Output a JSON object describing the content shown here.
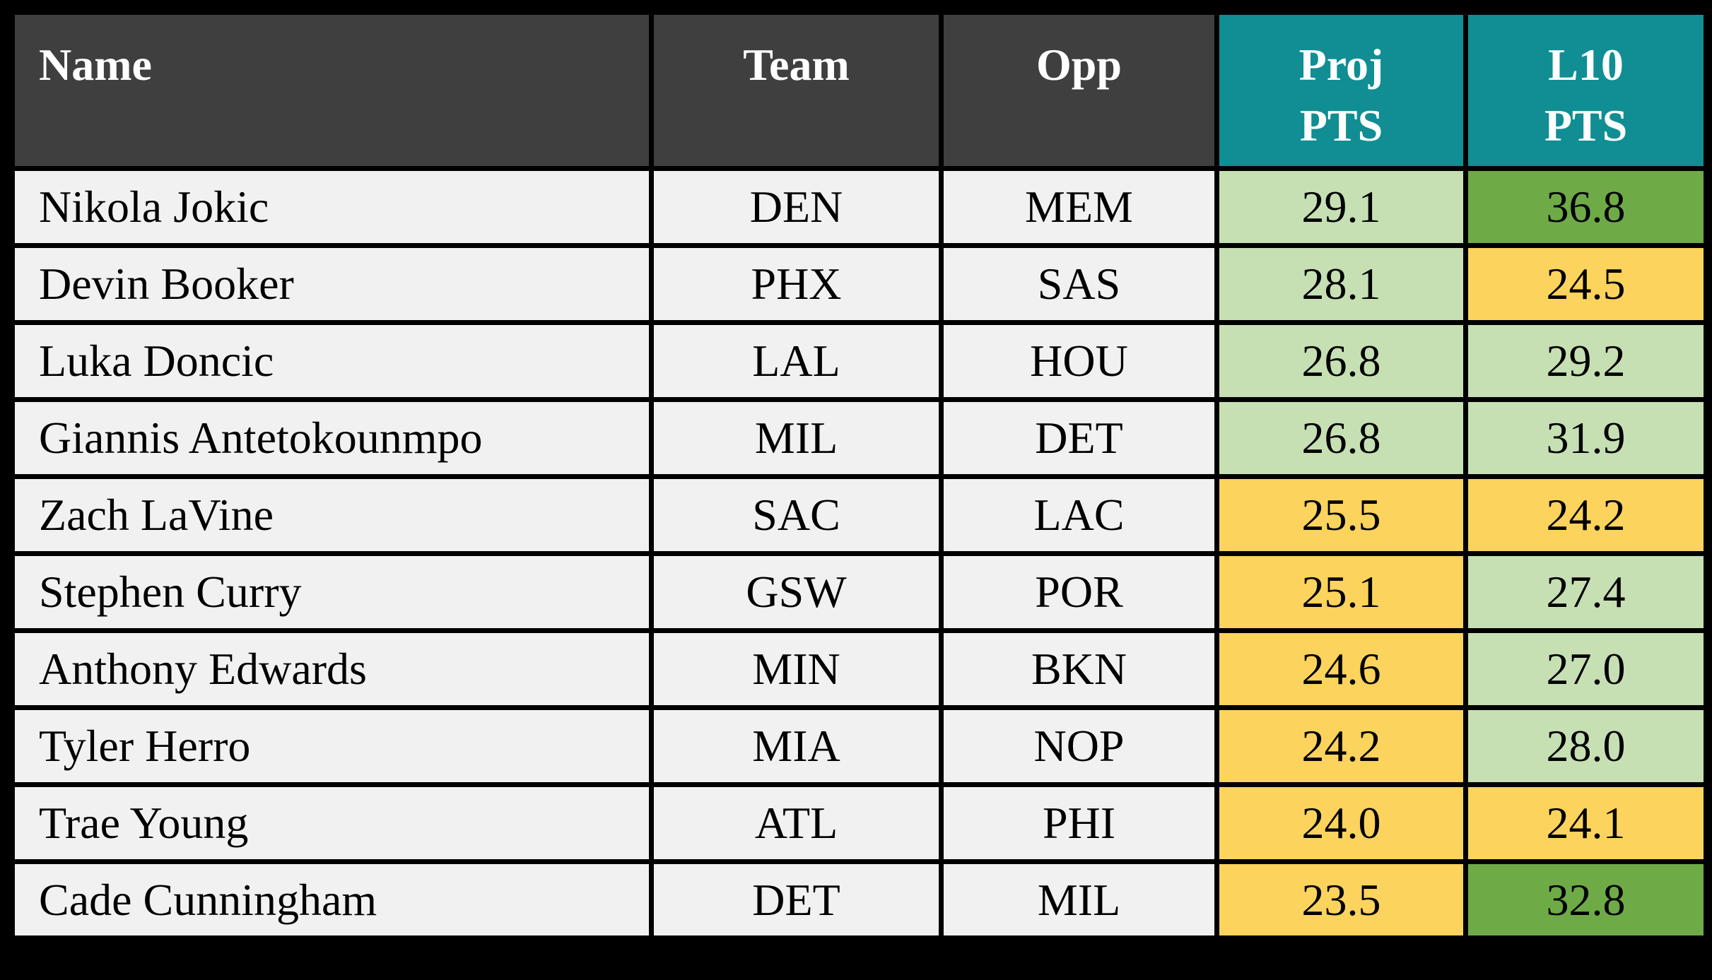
{
  "chart_data": {
    "type": "table",
    "title": "NBA player points projections table",
    "columns": [
      "Name",
      "Team",
      "Opp",
      "Proj PTS",
      "L10 PTS"
    ],
    "rows": [
      {
        "name": "Nikola Jokic",
        "team": "DEN",
        "opp": "MEM",
        "proj_pts": 29.1,
        "l10_pts": 36.8,
        "proj_color": "light_green",
        "l10_color": "dark_green"
      },
      {
        "name": "Devin Booker",
        "team": "PHX",
        "opp": "SAS",
        "proj_pts": 28.1,
        "l10_pts": 24.5,
        "proj_color": "light_green",
        "l10_color": "gold"
      },
      {
        "name": "Luka Doncic",
        "team": "LAL",
        "opp": "HOU",
        "proj_pts": 26.8,
        "l10_pts": 29.2,
        "proj_color": "light_green",
        "l10_color": "light_green"
      },
      {
        "name": "Giannis Antetokounmpo",
        "team": "MIL",
        "opp": "DET",
        "proj_pts": 26.8,
        "l10_pts": 31.9,
        "proj_color": "light_green",
        "l10_color": "light_green"
      },
      {
        "name": "Zach LaVine",
        "team": "SAC",
        "opp": "LAC",
        "proj_pts": 25.5,
        "l10_pts": 24.2,
        "proj_color": "gold",
        "l10_color": "gold"
      },
      {
        "name": "Stephen Curry",
        "team": "GSW",
        "opp": "POR",
        "proj_pts": 25.1,
        "l10_pts": 27.4,
        "proj_color": "gold",
        "l10_color": "light_green"
      },
      {
        "name": "Anthony Edwards",
        "team": "MIN",
        "opp": "BKN",
        "proj_pts": 24.6,
        "l10_pts": 27.0,
        "proj_color": "gold",
        "l10_color": "light_green"
      },
      {
        "name": "Tyler Herro",
        "team": "MIA",
        "opp": "NOP",
        "proj_pts": 24.2,
        "l10_pts": 28.0,
        "proj_color": "gold",
        "l10_color": "light_green"
      },
      {
        "name": "Trae Young",
        "team": "ATL",
        "opp": "PHI",
        "proj_pts": 24.0,
        "l10_pts": 24.1,
        "proj_color": "gold",
        "l10_color": "gold"
      },
      {
        "name": "Cade Cunningham",
        "team": "DET",
        "opp": "MIL",
        "proj_pts": 23.5,
        "l10_pts": 32.8,
        "proj_color": "gold",
        "l10_color": "dark_green"
      }
    ]
  },
  "header": {
    "name_label": "Name",
    "team_label": "Team",
    "opp_label": "Opp",
    "proj_label": "Proj\nPTS",
    "l10_label": "L10\nPTS"
  },
  "colors": {
    "page_background": "#000000",
    "border": "#000000",
    "header_dark": "#3F3F3F",
    "header_teal": "#108E93",
    "header_text": "#FFFFFF",
    "row_background": "#F1F1F1",
    "cell_text": "#000000",
    "light_green": "#C6E0B4",
    "dark_green": "#6EAB47",
    "gold": "#FBD35D"
  }
}
